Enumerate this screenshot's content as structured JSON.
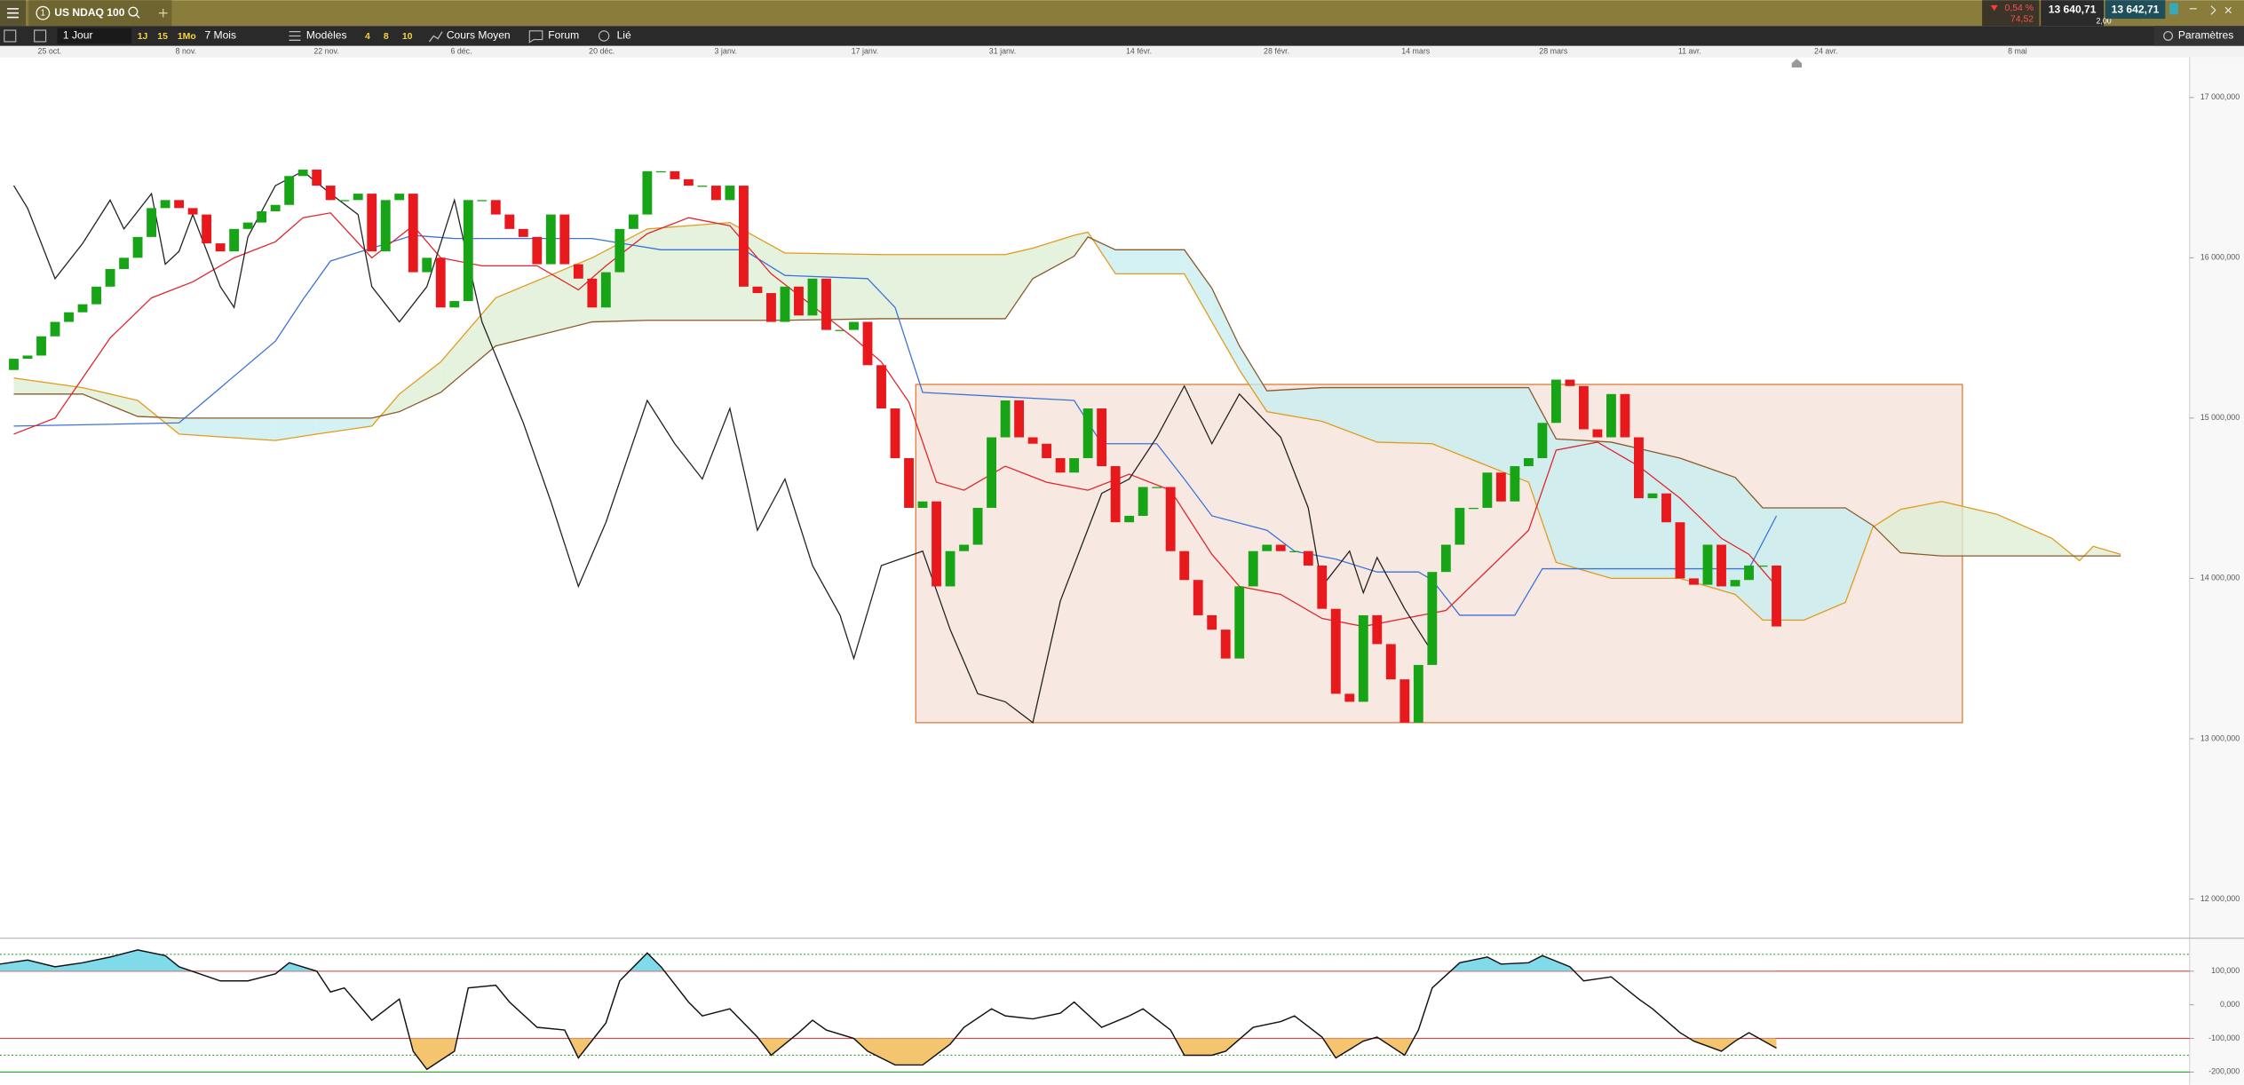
{
  "toolbar": {
    "instrument_number": "1",
    "instrument": "US NDAQ 100",
    "change_pct": "0,54 %",
    "change": "74,52",
    "bid": "13 640,71",
    "ask": "13 642,71",
    "spread": "2,00",
    "period": "1 Jour",
    "period_buttons": [
      "1J",
      "15",
      "1Mo"
    ],
    "range": "7 Mois",
    "models": "Modèles",
    "model_buttons": [
      "4",
      "8",
      "10"
    ],
    "average": "Cours Moyen",
    "forum": "Forum",
    "linked": "Lié",
    "settings": "Paramètres"
  },
  "chart_data": [
    {
      "type": "candlestick",
      "up_color": "#17a517",
      "down_color": "#e8191d",
      "x": [
        0,
        1,
        2,
        3,
        4,
        5,
        6,
        7,
        8,
        9,
        10,
        11,
        12,
        13,
        14,
        15,
        16,
        17,
        18,
        19,
        20,
        21,
        22,
        23,
        24,
        25,
        26,
        27,
        28,
        29,
        30,
        31,
        32,
        33,
        34,
        35,
        36,
        37,
        38,
        39,
        40,
        41,
        42,
        43,
        44,
        45,
        46,
        47,
        48,
        49,
        50,
        51,
        52,
        53,
        54,
        55,
        56,
        57,
        58,
        59,
        60,
        61,
        62,
        63,
        64,
        65,
        66,
        67,
        68,
        69,
        70,
        71,
        72,
        73,
        74,
        75,
        76,
        77,
        78,
        79,
        80,
        81,
        82,
        83,
        84,
        85,
        86,
        87,
        88,
        89,
        90,
        91,
        92,
        93,
        94,
        95,
        96,
        97,
        98,
        99,
        100,
        101,
        102,
        103,
        104,
        105,
        106,
        107,
        108,
        109,
        110,
        111,
        112,
        113,
        114,
        115,
        116,
        117,
        118,
        119,
        120,
        121,
        122,
        123,
        124,
        125,
        126,
        127,
        128
      ],
      "open": [
        15300,
        15370,
        15390,
        15510,
        15600,
        15660,
        15710,
        15820,
        15930,
        16000,
        16130,
        16310,
        16360,
        16310,
        16270,
        16090,
        16040,
        16180,
        16220,
        16290,
        16330,
        16510,
        16550,
        16450,
        16360,
        16360,
        16400,
        16040,
        16360,
        16400,
        15910,
        16000,
        15690,
        15730,
        16360,
        16360,
        16270,
        16180,
        16130,
        15960,
        16270,
        15960,
        15870,
        15690,
        15910,
        16180,
        16270,
        16540,
        16540,
        16490,
        16450,
        16450,
        16360,
        16450,
        15820,
        15780,
        15600,
        15820,
        15640,
        15870,
        15550,
        15550,
        15600,
        15330,
        15060,
        14750,
        14440,
        14480,
        13950,
        14170,
        14210,
        14440,
        14880,
        15110,
        14880,
        14840,
        14750,
        14660,
        14750,
        15060,
        14700,
        14350,
        14390,
        14570,
        14570,
        14170,
        13990,
        13770,
        13680,
        13500,
        13950,
        14170,
        14210,
        14170,
        14170,
        14080,
        13810,
        13280,
        13230,
        13770,
        13590,
        13370,
        13100,
        13460,
        14040,
        14210,
        14440,
        14440,
        14660,
        14480,
        14700,
        14750,
        14970,
        15240,
        15200,
        14930,
        14880,
        15150,
        14880,
        14500,
        14530,
        14350,
        14000,
        13960,
        14210,
        13950,
        13990,
        14080,
        14080
      ],
      "close": [
        15370,
        15390,
        15510,
        15600,
        15660,
        15710,
        15820,
        15930,
        16000,
        16130,
        16310,
        16360,
        16310,
        16270,
        16090,
        16040,
        16180,
        16220,
        16290,
        16330,
        16510,
        16550,
        16450,
        16360,
        16360,
        16400,
        16040,
        16360,
        16400,
        15910,
        16000,
        15690,
        15730,
        16360,
        16360,
        16270,
        16180,
        16130,
        15960,
        16270,
        15960,
        15870,
        15690,
        15910,
        16180,
        16270,
        16540,
        16540,
        16490,
        16450,
        16450,
        16360,
        16450,
        15820,
        15780,
        15600,
        15820,
        15640,
        15870,
        15550,
        15550,
        15600,
        15330,
        15060,
        14750,
        14440,
        14480,
        13950,
        14170,
        14210,
        14440,
        14880,
        15110,
        14880,
        14840,
        14750,
        14660,
        14750,
        15060,
        14700,
        14350,
        14390,
        14570,
        14570,
        14170,
        13990,
        13770,
        13680,
        13500,
        13950,
        14170,
        14210,
        14170,
        14170,
        14080,
        13810,
        13280,
        13230,
        13770,
        13590,
        13370,
        13100,
        13460,
        14040,
        14210,
        14440,
        14440,
        14660,
        14480,
        14700,
        14750,
        14970,
        15240,
        15200,
        14930,
        14880,
        15150,
        14880,
        14500,
        14530,
        14350,
        14000,
        13960,
        14210,
        13950,
        13990,
        14080,
        14080,
        13700
      ],
      "xlim": [
        -1,
        158
      ],
      "xticks": [
        {
          "value": 2.6,
          "label": "25 oct."
        },
        {
          "value": 12.5,
          "label": "8 nov."
        },
        {
          "value": 22.7,
          "label": "22 nov."
        },
        {
          "value": 32.5,
          "label": "6 déc."
        },
        {
          "value": 42.7,
          "label": "20 déc."
        },
        {
          "value": 51.7,
          "label": "3 janv."
        },
        {
          "value": 61.8,
          "label": "17 janv."
        },
        {
          "value": 71.8,
          "label": "31 janv."
        },
        {
          "value": 81.7,
          "label": "14 févr."
        },
        {
          "value": 91.7,
          "label": "28 févr."
        },
        {
          "value": 101.8,
          "label": "14 mars"
        },
        {
          "value": 111.8,
          "label": "28 mars"
        },
        {
          "value": 121.7,
          "label": "11 avr."
        },
        {
          "value": 131.6,
          "label": "24 avr."
        },
        {
          "value": 145.5,
          "label": "8 mai"
        }
      ],
      "ylim": [
        11760,
        17250
      ],
      "yticks": [
        {
          "value": 12000,
          "label": "12 000,000"
        },
        {
          "value": 13000,
          "label": "13 000,000"
        },
        {
          "value": 14000,
          "label": "14 000,000"
        },
        {
          "value": 15000,
          "label": "15 000,000"
        },
        {
          "value": 16000,
          "label": "16 000,000"
        },
        {
          "value": 17000,
          "label": "17 000,000"
        }
      ],
      "rectangle": {
        "x": [
          65.5,
          141.5
        ],
        "y": [
          13100,
          15210
        ],
        "stroke": "#e07b39",
        "fill": "#f5e4da"
      },
      "cloud": {
        "color_a": "#e29a1e",
        "color_b": "#8b5a2b",
        "fill_up": "#dcedd3",
        "fill_down": "#c5eef0",
        "x": [
          0,
          5,
          9,
          12,
          19,
          22,
          26,
          28,
          31,
          35,
          42,
          46,
          52,
          56,
          63,
          72,
          74,
          77,
          78,
          80,
          85,
          87,
          89,
          91,
          95,
          99,
          103,
          110,
          112,
          116,
          121,
          125,
          127,
          130,
          133,
          135,
          137,
          140,
          144,
          148,
          150,
          151,
          153
        ],
        "span_a": [
          15250,
          15190,
          15110,
          14900,
          14860,
          14900,
          14950,
          15150,
          15350,
          15750,
          16000,
          16180,
          16220,
          16030,
          16020,
          16020,
          16060,
          16140,
          16160,
          15900,
          15900,
          15600,
          15300,
          15040,
          14980,
          14850,
          14840,
          14600,
          14100,
          14000,
          14000,
          13900,
          13740,
          13740,
          13850,
          14320,
          14430,
          14480,
          14400,
          14250,
          14110,
          14200,
          14150
        ],
        "span_b": [
          15150,
          15150,
          15010,
          15000,
          15000,
          15000,
          15000,
          15040,
          15160,
          15450,
          15600,
          15610,
          15610,
          15610,
          15620,
          15620,
          15870,
          16010,
          16130,
          16050,
          16050,
          15810,
          15450,
          15170,
          15190,
          15190,
          15190,
          15190,
          14870,
          14850,
          14750,
          14630,
          14440,
          14440,
          14440,
          14330,
          14160,
          14140,
          14140,
          14140,
          14140,
          14140,
          14140
        ]
      },
      "lines": [
        {
          "color": "#3b73d9",
          "x": [
            0,
            12,
            19,
            21,
            23,
            29,
            32,
            42,
            47,
            53,
            56,
            62,
            64,
            66,
            77,
            79,
            83,
            85,
            87,
            91,
            93,
            96,
            99,
            102,
            103,
            105,
            109,
            111,
            126,
            128
          ],
          "values": [
            14950,
            14970,
            15480,
            15740,
            15980,
            16140,
            16120,
            16120,
            16050,
            16050,
            15890,
            15870,
            15690,
            15160,
            15110,
            14840,
            14840,
            14620,
            14390,
            14300,
            14170,
            14120,
            14040,
            14040,
            13990,
            13770,
            13770,
            14060,
            14060,
            14390
          ]
        },
        {
          "color": "#e0252b",
          "x": [
            0,
            3,
            5,
            7,
            10,
            13,
            16,
            19,
            21,
            23,
            26,
            29,
            31,
            34,
            38,
            41,
            43,
            46,
            49,
            52,
            55,
            58,
            61,
            63,
            65,
            67,
            69,
            72,
            75,
            78,
            81,
            84,
            87,
            89,
            92,
            95,
            98,
            101,
            104,
            107,
            110,
            112,
            115,
            118,
            121,
            124,
            126,
            128
          ],
          "values": [
            14900,
            15000,
            15250,
            15500,
            15750,
            15850,
            16000,
            16100,
            16250,
            16280,
            16000,
            16200,
            16000,
            15950,
            15950,
            15800,
            15950,
            16150,
            16250,
            16200,
            15900,
            15700,
            15500,
            15350,
            15100,
            14600,
            14550,
            14700,
            14600,
            14550,
            14650,
            14550,
            14150,
            13950,
            13900,
            13750,
            13700,
            13750,
            13800,
            14050,
            14300,
            14800,
            14850,
            14700,
            14500,
            14250,
            14150,
            13950
          ]
        },
        {
          "color": "#222222",
          "x": [
            0,
            1,
            3,
            5,
            7,
            8,
            10,
            11,
            12,
            13,
            15,
            16,
            17,
            19,
            21,
            23,
            25,
            26,
            28,
            30,
            32,
            34,
            37,
            39,
            41,
            43,
            46,
            48,
            50,
            52,
            54,
            56,
            58,
            60,
            61,
            63,
            66,
            68,
            70,
            72,
            74,
            76,
            79,
            81,
            83,
            85,
            87,
            89,
            92,
            94,
            95,
            97,
            98,
            99,
            101,
            103
          ],
          "values": [
            16450,
            16310,
            15870,
            16090,
            16360,
            16180,
            16400,
            15960,
            16040,
            16270,
            15820,
            15690,
            16130,
            16450,
            16540,
            16400,
            16270,
            15820,
            15600,
            15820,
            16360,
            15600,
            14970,
            14480,
            13950,
            14350,
            15110,
            14840,
            14620,
            15060,
            14300,
            14620,
            14080,
            13770,
            13500,
            14080,
            14170,
            13680,
            13280,
            13230,
            13100,
            13860,
            14530,
            14620,
            14880,
            15200,
            14840,
            15150,
            14880,
            14440,
            13950,
            14170,
            13910,
            14130,
            13810,
            13540
          ]
        }
      ]
    },
    {
      "type": "line",
      "color": "#111111",
      "fill_above": "#7fdbe9",
      "fill_below": "#f5c46f",
      "xlim": [
        -1,
        158
      ],
      "ylim": [
        -238,
        196
      ],
      "yticks": [
        {
          "value": 100,
          "label": "100,000"
        },
        {
          "value": 0,
          "label": "0,000"
        },
        {
          "value": -100,
          "label": "-100,000"
        },
        {
          "value": -200,
          "label": "-200,000"
        }
      ],
      "levels": [
        {
          "value": 150,
          "color": "#2e9e2e",
          "style": "dotted"
        },
        {
          "value": 100,
          "color": "#e33b3b",
          "style": "solid"
        },
        {
          "value": -100,
          "color": "#e33b3b",
          "style": "solid"
        },
        {
          "value": -150,
          "color": "#2e9e2e",
          "style": "dotted"
        },
        {
          "value": -200,
          "color": "#2e9e2e",
          "style": "solid"
        }
      ],
      "x": [
        -1,
        1,
        3,
        5,
        7,
        9,
        11,
        12,
        15,
        17,
        19,
        20,
        22,
        23,
        24,
        26,
        28,
        29,
        30,
        32,
        33,
        35,
        36,
        38,
        40,
        41,
        43,
        44,
        46,
        47,
        49,
        50,
        52,
        54,
        55,
        57,
        58,
        59,
        61,
        62,
        64,
        66,
        68,
        69,
        71,
        72,
        74,
        76,
        77,
        79,
        81,
        82,
        84,
        85,
        87,
        88,
        90,
        92,
        93,
        95,
        96,
        98,
        99,
        101,
        102,
        103,
        105,
        107,
        108,
        110,
        111,
        113,
        114,
        116,
        118,
        119,
        121,
        122,
        124,
        125,
        126,
        128
      ],
      "values": [
        121,
        133,
        113,
        125,
        142,
        163,
        146,
        113,
        71,
        71,
        92,
        125,
        100,
        38,
        50,
        -46,
        17,
        -138,
        -192,
        -138,
        50,
        58,
        8,
        -67,
        -75,
        -158,
        -54,
        71,
        154,
        113,
        8,
        -33,
        -12,
        -96,
        -150,
        -83,
        -46,
        -75,
        -100,
        -138,
        -179,
        -179,
        -117,
        -67,
        -12,
        -33,
        -42,
        -25,
        8,
        -67,
        -33,
        -12,
        -75,
        -150,
        -150,
        -138,
        -67,
        -50,
        -33,
        -96,
        -158,
        -108,
        -96,
        -150,
        -75,
        50,
        125,
        142,
        121,
        125,
        146,
        113,
        71,
        83,
        17,
        -12,
        -83,
        -108,
        -138,
        -108,
        -83,
        -129
      ]
    }
  ]
}
